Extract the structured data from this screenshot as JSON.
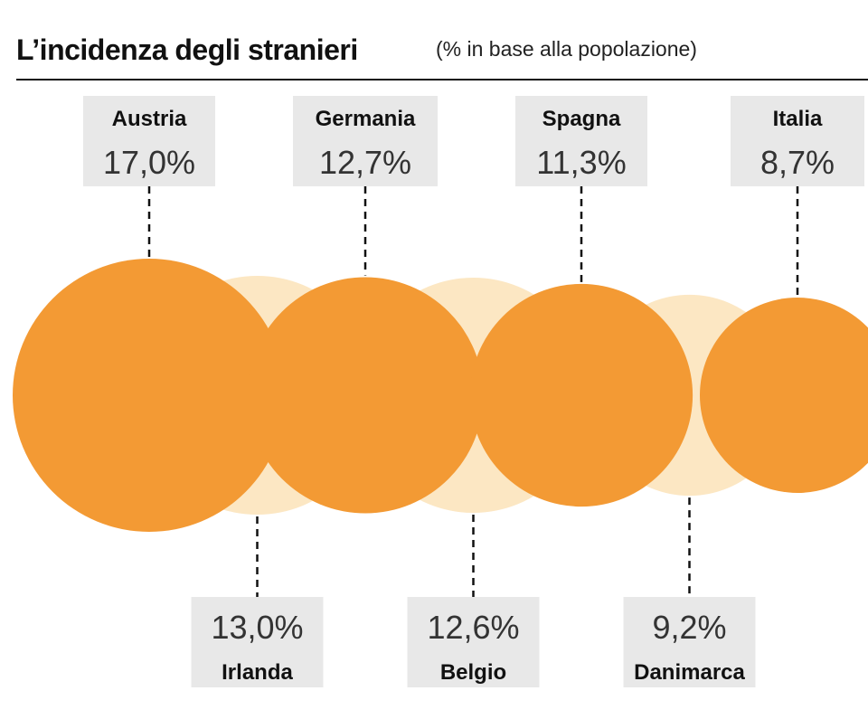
{
  "chart_data": {
    "type": "bubble",
    "title": "L’incidenza degli stranieri",
    "subtitle": "(% in base alla popolazione)",
    "unit": "%",
    "colors": {
      "dark": "#f39a34",
      "light": "#fce7c3",
      "box": "#e8e8e8",
      "rule": "#111111"
    },
    "items": [
      {
        "country": "Austria",
        "value": 17.0,
        "label": "17,0%",
        "tone": "dark"
      },
      {
        "country": "Irlanda",
        "value": 13.0,
        "label": "13,0%",
        "tone": "light"
      },
      {
        "country": "Germania",
        "value": 12.7,
        "label": "12,7%",
        "tone": "dark"
      },
      {
        "country": "Belgio",
        "value": 12.6,
        "label": "12,6%",
        "tone": "light"
      },
      {
        "country": "Spagna",
        "value": 11.3,
        "label": "11,3%",
        "tone": "dark"
      },
      {
        "country": "Danimarca",
        "value": 9.2,
        "label": "9,2%",
        "tone": "light"
      },
      {
        "country": "Italia",
        "value": 8.7,
        "label": "8,7%",
        "tone": "dark"
      }
    ]
  }
}
